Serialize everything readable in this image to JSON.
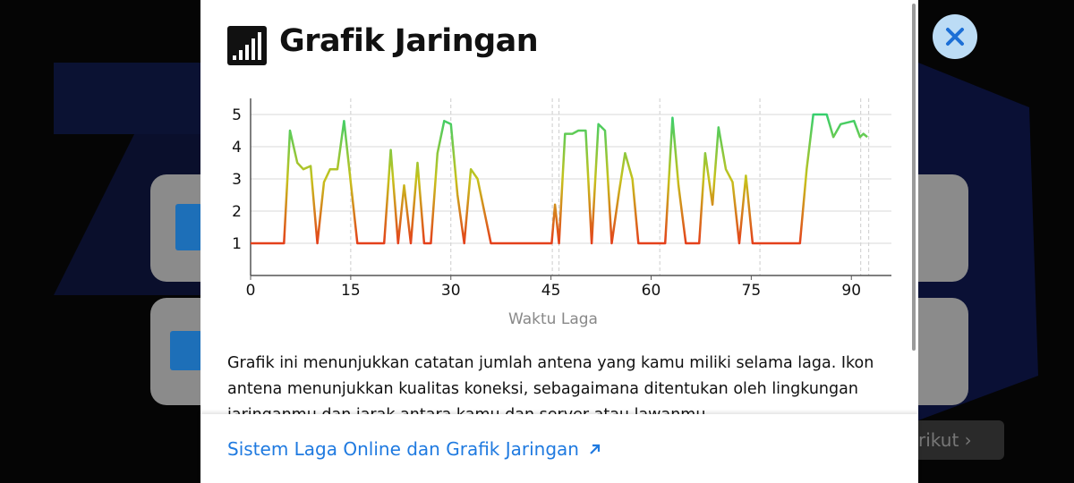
{
  "modal": {
    "title": "Grafik Jaringan",
    "description": "Grafik ini menunjukkan catatan jumlah antena yang kamu miliki selama laga. Ikon antena menunjukkan kualitas koneksi, sebagaimana ditentukan oleh lingkungan jaringanmu dan jarak antara kamu dan server atau lawanmu.",
    "link": "Sistem Laga Online dan Grafik Jaringan"
  },
  "background": {
    "button": "Berikut"
  },
  "chart_data": {
    "type": "line",
    "x_label": "Waktu Laga",
    "x": [
      0,
      5,
      5.9,
      7,
      7.9,
      9,
      10,
      11,
      11.9,
      13,
      14,
      16,
      20,
      21,
      22.1,
      23,
      24,
      25,
      26,
      27,
      28,
      29,
      30,
      31,
      32,
      33,
      34,
      36,
      45.1,
      45.6,
      46.2,
      47.1,
      48.2,
      49.1,
      50.2,
      51.1,
      52.1,
      53.1,
      54.1,
      55.2,
      56.1,
      57.2,
      58.1,
      62.1,
      63.2,
      64.1,
      65.2,
      67.2,
      68.1,
      69.2,
      70.1,
      71.2,
      72.2,
      73.2,
      74.2,
      75.2,
      82.3,
      83.3,
      84.3,
      85.3,
      86.3,
      87.3,
      88.4,
      90.4,
      91.3,
      91.8,
      92.4
    ],
    "series": [
      {
        "values": [
          1,
          1,
          4.5,
          3.5,
          3.3,
          3.4,
          1,
          2.9,
          3.3,
          3.3,
          4.8,
          1,
          1,
          3.9,
          1,
          2.8,
          1,
          3.5,
          1,
          1,
          3.8,
          4.8,
          4.7,
          2.5,
          1,
          3.3,
          3,
          1,
          1,
          2.2,
          1,
          4.4,
          4.4,
          4.5,
          4.5,
          1,
          4.7,
          4.5,
          1,
          2.6,
          3.8,
          3,
          1,
          1,
          4.9,
          2.8,
          1,
          1,
          3.8,
          2.2,
          4.6,
          3.3,
          2.9,
          1,
          3.1,
          1,
          1,
          3.3,
          5,
          5,
          5,
          4.3,
          4.7,
          4.8,
          4.3,
          4.4,
          4.3
        ]
      }
    ],
    "line_gradient": {
      "low": "#e4401b",
      "mid": "#c6c21c",
      "high": "#36cf6e"
    },
    "reference_lines": [
      15,
      30,
      45.2,
      46.2,
      61.3,
      76.3,
      91.4,
      92.6
    ],
    "xlim": [
      0,
      96
    ],
    "ylim": [
      0,
      5.5
    ],
    "xticks": [
      0,
      15,
      30,
      45,
      60,
      75,
      90
    ],
    "yticks": [
      1,
      2,
      3,
      4,
      5
    ],
    "grid": true
  }
}
